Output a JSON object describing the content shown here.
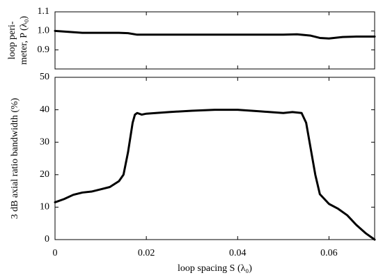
{
  "chart_data": [
    {
      "type": "line",
      "y_label": [
        "loop peri-",
        "meter, P (λ₀)"
      ],
      "xlim": [
        0,
        0.07
      ],
      "xticks": [
        0,
        0.02,
        0.04,
        0.06
      ],
      "ylim": [
        0.8,
        1.1
      ],
      "yticks": [
        0.9,
        {
          "value": 1,
          "label": "1.0"
        },
        1.1
      ],
      "show_xtick_labels": false,
      "series": [
        {
          "color": "#000000",
          "x": [
            0,
            0.003,
            0.006,
            0.01,
            0.014,
            0.016,
            0.018,
            0.025,
            0.03,
            0.04,
            0.05,
            0.053,
            0.056,
            0.058,
            0.06,
            0.063,
            0.066,
            0.07
          ],
          "values": [
            1.0,
            0.995,
            0.99,
            0.99,
            0.99,
            0.988,
            0.98,
            0.98,
            0.98,
            0.98,
            0.98,
            0.982,
            0.975,
            0.963,
            0.96,
            0.968,
            0.97,
            0.97
          ]
        }
      ]
    },
    {
      "type": "line",
      "y_label": [
        "3 dB axial ratio bandwidth  (%)"
      ],
      "x_label": "loop spacing S (λ₀)",
      "xlim": [
        0,
        0.07
      ],
      "xticks": [
        0,
        0.02,
        0.04,
        0.06
      ],
      "ylim": [
        0,
        50
      ],
      "yticks": [
        0,
        10,
        20,
        30,
        40,
        50
      ],
      "show_xtick_labels": true,
      "series": [
        {
          "color": "#000000",
          "x": [
            0,
            0.002,
            0.004,
            0.006,
            0.008,
            0.01,
            0.012,
            0.014,
            0.015,
            0.016,
            0.017,
            0.0175,
            0.018,
            0.019,
            0.02,
            0.025,
            0.03,
            0.035,
            0.04,
            0.045,
            0.05,
            0.052,
            0.054,
            0.055,
            0.056,
            0.057,
            0.058,
            0.06,
            0.062,
            0.064,
            0.066,
            0.068,
            0.07
          ],
          "values": [
            11.5,
            12.5,
            13.8,
            14.5,
            14.8,
            15.5,
            16.2,
            18,
            20,
            27,
            36,
            38.5,
            39,
            38.5,
            38.8,
            39.3,
            39.7,
            40,
            40,
            39.5,
            39,
            39.3,
            39,
            36,
            28,
            20,
            14,
            11,
            9.5,
            7.5,
            4.5,
            2,
            0
          ]
        }
      ]
    }
  ]
}
